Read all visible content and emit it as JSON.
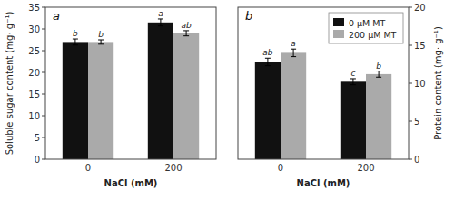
{
  "chart_data": [
    {
      "type": "bar",
      "title": "a",
      "ylabel": "Soluble sugar content  (mg· g⁻¹)",
      "xlabel": "NaCl (mM)",
      "categories": [
        "0",
        "200"
      ],
      "ylim": [
        0,
        35
      ],
      "yticks": [
        0,
        5,
        10,
        15,
        20,
        25,
        30,
        35
      ],
      "grid": false,
      "series": [
        {
          "color": "#111111",
          "values": [
            27.0,
            31.5
          ],
          "errors": [
            0.7,
            0.8
          ],
          "letters": [
            "b",
            "a"
          ]
        },
        {
          "color": "#aaaaaa",
          "values": [
            27.0,
            29.0
          ],
          "errors": [
            0.5,
            0.6
          ],
          "letters": [
            "b",
            "ab"
          ]
        }
      ]
    },
    {
      "type": "bar",
      "title": "b",
      "ylabel": "Protein content  (mg· g⁻¹)",
      "xlabel": "NaCl (mM)",
      "categories": [
        "0",
        "200"
      ],
      "ylim": [
        0,
        20
      ],
      "yticks": [
        0,
        5,
        10,
        15,
        20
      ],
      "grid": false,
      "legend": "upper right",
      "series": [
        {
          "name": "0 μM MT",
          "color": "#111111",
          "values": [
            12.8,
            10.2
          ],
          "errors": [
            0.5,
            0.4
          ],
          "letters": [
            "ab",
            "c"
          ]
        },
        {
          "name": "200 μM MT",
          "color": "#aaaaaa",
          "values": [
            14.0,
            11.2
          ],
          "errors": [
            0.5,
            0.4
          ],
          "letters": [
            "a",
            "b"
          ]
        }
      ]
    }
  ]
}
